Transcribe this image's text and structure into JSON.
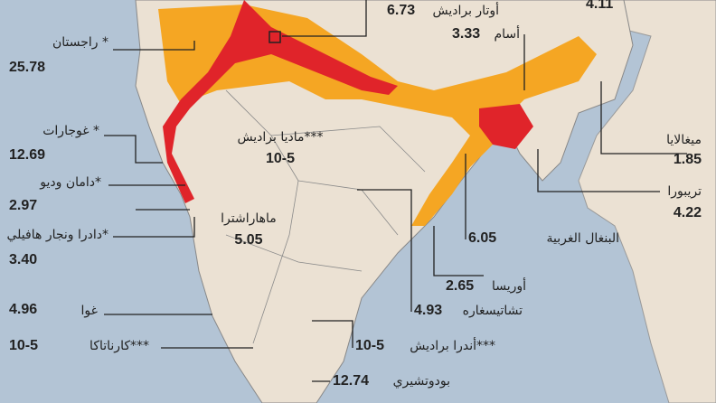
{
  "regions": [
    {
      "name": "أوتار براديش",
      "value": "6.73"
    },
    {
      "value": "4.11"
    },
    {
      "name": "أسام",
      "value": "3.33"
    },
    {
      "name": "راجستان *",
      "value": "25.78"
    },
    {
      "name": "غوجارات *",
      "value": "12.69"
    },
    {
      "name": "دامان وديو*",
      "value": "2.97"
    },
    {
      "name": "دادرا ونجار هافيلي*",
      "value": "3.40"
    },
    {
      "name": "غوا",
      "value": "4.96"
    },
    {
      "name": "كارناتاكا***",
      "value": "10-5"
    },
    {
      "name": "ماديا براديش***",
      "value": "10-5"
    },
    {
      "name": "ماهاراشترا",
      "value": "5.05"
    },
    {
      "name": "ميغالايا",
      "value": "1.85"
    },
    {
      "name": "تريبورا",
      "value": "4.22"
    },
    {
      "name": "البنغال الغربية",
      "value": "6.05"
    },
    {
      "name": "أوريسا",
      "value": "2.65"
    },
    {
      "name": "تشاتيسغاره",
      "value": "4.93"
    },
    {
      "name": "أندرا براديش***",
      "value": "10-5"
    },
    {
      "name": "بودوتشيري",
      "value": "12.74"
    }
  ]
}
